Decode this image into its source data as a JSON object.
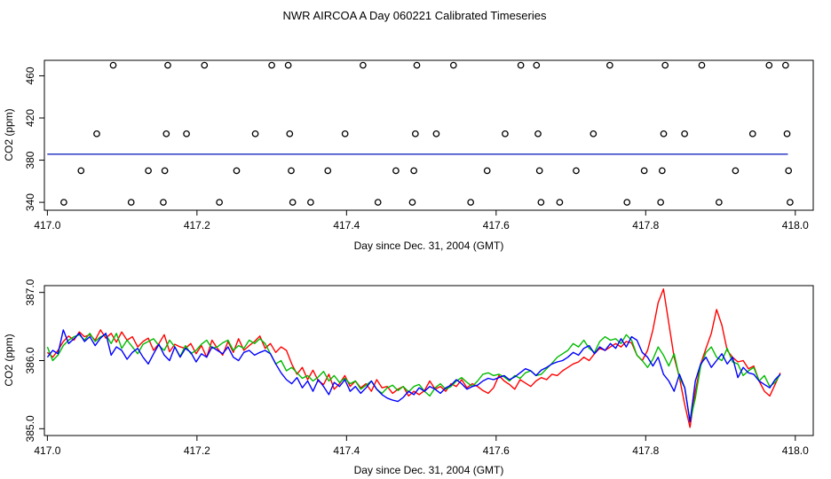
{
  "figure": {
    "title": "NWR AIRCOA A  Day 060221  Calibrated Timeseries"
  },
  "chart_data": [
    {
      "type": "scatter",
      "xlabel": "Day since Dec. 31, 2004 (GMT)",
      "ylabel": "CO2 (ppm)",
      "xlim": [
        416.996,
        418.024
      ],
      "ylim": [
        332.5,
        474.7
      ],
      "xticks": [
        "417.0",
        "417.2",
        "417.4",
        "417.6",
        "417.8",
        "418.0"
      ],
      "yticks": [
        "340",
        "380",
        "420",
        "460"
      ],
      "points": [
        [
          417.022,
          340
        ],
        [
          417.045,
          370
        ],
        [
          417.066,
          405
        ],
        [
          417.088,
          470
        ],
        [
          417.112,
          340
        ],
        [
          417.135,
          370
        ],
        [
          417.155,
          340
        ],
        [
          417.157,
          370
        ],
        [
          417.159,
          405
        ],
        [
          417.161,
          470
        ],
        [
          417.186,
          405
        ],
        [
          417.21,
          470
        ],
        [
          417.23,
          340
        ],
        [
          417.253,
          370
        ],
        [
          417.278,
          405
        ],
        [
          417.3,
          470
        ],
        [
          417.322,
          470
        ],
        [
          417.324,
          405
        ],
        [
          417.326,
          370
        ],
        [
          417.328,
          340
        ],
        [
          417.352,
          340
        ],
        [
          417.375,
          370
        ],
        [
          417.398,
          405
        ],
        [
          417.422,
          470
        ],
        [
          417.442,
          340
        ],
        [
          417.466,
          370
        ],
        [
          417.488,
          340
        ],
        [
          417.49,
          370
        ],
        [
          417.492,
          405
        ],
        [
          417.494,
          470
        ],
        [
          417.52,
          405
        ],
        [
          417.543,
          470
        ],
        [
          417.566,
          340
        ],
        [
          417.588,
          370
        ],
        [
          417.612,
          405
        ],
        [
          417.633,
          470
        ],
        [
          417.654,
          470
        ],
        [
          417.656,
          405
        ],
        [
          417.658,
          370
        ],
        [
          417.66,
          340
        ],
        [
          417.685,
          340
        ],
        [
          417.707,
          370
        ],
        [
          417.73,
          405
        ],
        [
          417.752,
          470
        ],
        [
          417.775,
          340
        ],
        [
          417.798,
          370
        ],
        [
          417.82,
          340
        ],
        [
          417.822,
          370
        ],
        [
          417.824,
          405
        ],
        [
          417.826,
          470
        ],
        [
          417.852,
          405
        ],
        [
          417.875,
          470
        ],
        [
          417.898,
          340
        ],
        [
          417.92,
          370
        ],
        [
          417.943,
          405
        ],
        [
          417.965,
          470
        ],
        [
          417.987,
          470
        ],
        [
          417.989,
          405
        ],
        [
          417.991,
          370
        ],
        [
          417.993,
          340
        ]
      ],
      "reference_lines": [
        {
          "color": "#ff0000",
          "y": 385.6
        },
        {
          "color": "#00bb00",
          "y": 385.7
        },
        {
          "color": "#0000ff",
          "y": 385.6
        }
      ],
      "reference_x_range": [
        417.0,
        417.99
      ]
    },
    {
      "type": "line",
      "xlabel": "Day since Dec. 31, 2004 (GMT)",
      "ylabel": "CO2 (ppm)",
      "xlim": [
        416.996,
        418.024
      ],
      "ylim": [
        384.9,
        387.1
      ],
      "xticks": [
        "417.0",
        "417.2",
        "417.4",
        "417.6",
        "417.8",
        "418.0"
      ],
      "yticks": [
        "385.0",
        "386.0",
        "387.0"
      ],
      "series": [
        {
          "color": "#ff0000",
          "x_range": [
            417.0,
            417.98
          ],
          "values": [
            386.12,
            386.05,
            386.15,
            386.28,
            386.36,
            386.3,
            386.42,
            386.35,
            386.38,
            386.3,
            386.45,
            386.33,
            386.4,
            386.27,
            386.42,
            386.3,
            386.35,
            386.2,
            386.28,
            386.33,
            386.15,
            386.25,
            386.38,
            386.13,
            386.24,
            386.2,
            386.18,
            386.25,
            386.1,
            386.22,
            386.05,
            386.3,
            386.18,
            386.08,
            386.28,
            386.12,
            386.32,
            386.15,
            386.22,
            386.28,
            386.36,
            386.18,
            386.25,
            386.12,
            386.2,
            386.15,
            385.95,
            385.8,
            385.9,
            385.72,
            385.86,
            385.7,
            385.65,
            385.8,
            385.58,
            385.66,
            385.78,
            385.62,
            385.7,
            385.6,
            385.66,
            385.55,
            385.72,
            385.6,
            385.62,
            385.52,
            385.58,
            385.62,
            385.48,
            385.55,
            385.5,
            385.56,
            385.7,
            385.58,
            385.62,
            385.55,
            385.66,
            385.62,
            385.72,
            385.6,
            385.66,
            385.62,
            385.56,
            385.52,
            385.6,
            385.78,
            385.7,
            385.65,
            385.58,
            385.72,
            385.67,
            385.62,
            385.7,
            385.75,
            385.72,
            385.8,
            385.78,
            385.85,
            385.9,
            385.95,
            385.98,
            386.05,
            386.0,
            386.1,
            386.18,
            386.15,
            386.2,
            386.25,
            386.2,
            386.28,
            386.26,
            386.08,
            386.0,
            386.15,
            386.45,
            386.85,
            387.05,
            386.55,
            386.05,
            385.75,
            385.35,
            385.02,
            385.55,
            385.95,
            386.18,
            386.4,
            386.75,
            386.52,
            386.15,
            386.05,
            385.98,
            386.0,
            385.88,
            385.92,
            385.7,
            385.55,
            385.48,
            385.65,
            385.82
          ]
        },
        {
          "color": "#00bb00",
          "x_range": [
            417.0,
            417.98
          ],
          "values": [
            386.2,
            386.0,
            386.08,
            386.22,
            386.3,
            386.35,
            386.38,
            386.3,
            386.4,
            386.28,
            386.35,
            386.38,
            386.25,
            386.4,
            386.18,
            386.3,
            386.2,
            386.1,
            386.24,
            386.28,
            386.32,
            386.22,
            386.15,
            386.3,
            386.2,
            386.06,
            386.22,
            386.1,
            386.15,
            386.24,
            386.3,
            386.18,
            386.2,
            386.26,
            386.3,
            386.15,
            386.22,
            386.18,
            386.3,
            386.25,
            386.32,
            386.25,
            386.1,
            385.95,
            386.0,
            385.85,
            385.9,
            385.82,
            385.74,
            385.78,
            385.7,
            385.76,
            385.84,
            385.7,
            385.78,
            385.68,
            385.74,
            385.66,
            385.7,
            385.58,
            385.64,
            385.7,
            385.58,
            385.52,
            385.6,
            385.64,
            385.56,
            385.62,
            385.54,
            385.62,
            385.65,
            385.55,
            385.48,
            385.6,
            385.66,
            385.58,
            385.62,
            385.7,
            385.75,
            385.68,
            385.62,
            385.7,
            385.8,
            385.82,
            385.78,
            385.8,
            385.76,
            385.7,
            385.78,
            385.74,
            385.82,
            385.85,
            385.78,
            385.8,
            385.88,
            385.96,
            386.05,
            386.1,
            386.15,
            386.25,
            386.2,
            386.3,
            386.18,
            386.12,
            386.28,
            386.35,
            386.3,
            386.32,
            386.25,
            386.38,
            386.3,
            386.08,
            386.0,
            385.9,
            386.02,
            386.2,
            386.08,
            385.92,
            386.1,
            385.75,
            385.6,
            385.1,
            385.45,
            385.92,
            386.12,
            386.2,
            386.05,
            386.0,
            386.18,
            385.98,
            385.95,
            385.78,
            385.85,
            385.9,
            385.7,
            385.78,
            385.62,
            385.68,
            385.8
          ]
        },
        {
          "color": "#0000ff",
          "x_range": [
            417.0,
            417.98
          ],
          "values": [
            386.05,
            386.15,
            386.1,
            386.45,
            386.25,
            386.32,
            386.4,
            386.28,
            386.35,
            386.22,
            386.33,
            386.4,
            386.08,
            386.2,
            386.15,
            386.02,
            386.12,
            386.18,
            386.05,
            385.95,
            386.1,
            386.24,
            386.08,
            386.0,
            386.2,
            386.05,
            386.18,
            386.12,
            385.98,
            386.1,
            386.05,
            386.2,
            386.15,
            386.1,
            386.2,
            386.05,
            386.0,
            386.12,
            386.15,
            386.08,
            386.12,
            386.15,
            386.1,
            385.95,
            385.82,
            385.72,
            385.66,
            385.75,
            385.6,
            385.7,
            385.55,
            385.72,
            385.62,
            385.5,
            385.68,
            385.62,
            385.72,
            385.55,
            385.62,
            385.52,
            385.6,
            385.7,
            385.58,
            385.5,
            385.45,
            385.42,
            385.4,
            385.46,
            385.55,
            385.5,
            385.6,
            385.55,
            385.62,
            385.58,
            385.52,
            385.6,
            385.64,
            385.72,
            385.66,
            385.58,
            385.62,
            385.64,
            385.7,
            385.74,
            385.72,
            385.75,
            385.78,
            385.72,
            385.76,
            385.82,
            385.88,
            385.85,
            385.78,
            385.86,
            385.9,
            385.95,
            385.98,
            386.0,
            386.05,
            386.12,
            386.08,
            386.18,
            386.22,
            386.1,
            386.2,
            386.15,
            386.25,
            386.18,
            386.32,
            386.2,
            386.35,
            386.3,
            386.12,
            386.05,
            385.92,
            386.05,
            385.8,
            385.7,
            385.55,
            385.8,
            385.6,
            385.1,
            385.7,
            385.95,
            386.05,
            385.9,
            386.0,
            386.1,
            385.95,
            386.05,
            385.75,
            385.9,
            385.82,
            385.8,
            385.7,
            385.65,
            385.6,
            385.72,
            385.8
          ]
        }
      ]
    }
  ]
}
